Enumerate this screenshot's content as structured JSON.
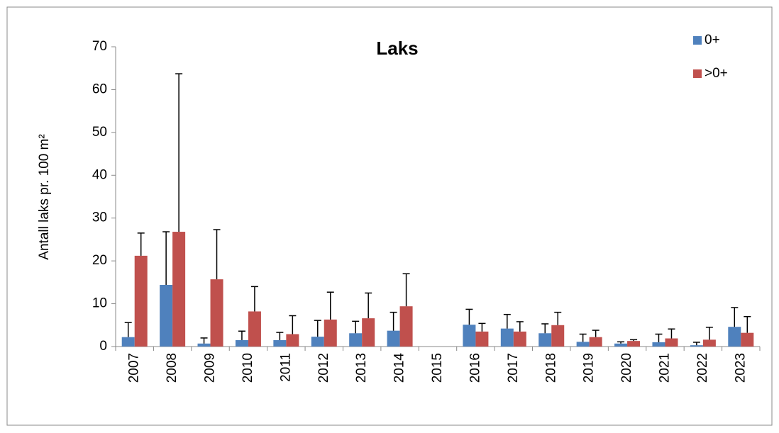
{
  "chart_data": {
    "type": "bar",
    "title": "Laks",
    "y_label": "Antall laks pr. 100 m²",
    "categories": [
      "2007",
      "2008",
      "2009",
      "2010",
      "2011",
      "2012",
      "2013",
      "2014",
      "2015",
      "2016",
      "2017",
      "2018",
      "2019",
      "2020",
      "2021",
      "2022",
      "2023"
    ],
    "series": [
      {
        "name": "0+",
        "color": "#4f81bd",
        "values": [
          2.2,
          14.4,
          0.7,
          1.5,
          1.5,
          2.3,
          3.1,
          3.7,
          null,
          5.1,
          4.2,
          3.1,
          1.1,
          0.7,
          1.0,
          0.3,
          4.6
        ],
        "errors": [
          3.4,
          12.4,
          1.3,
          2.1,
          1.8,
          3.8,
          2.8,
          4.3,
          null,
          3.6,
          3.3,
          2.2,
          1.8,
          0.4,
          1.9,
          0.7,
          4.5
        ]
      },
      {
        "name": ">0+",
        "color": "#c0504d",
        "values": [
          21.2,
          26.8,
          15.7,
          8.2,
          2.9,
          6.3,
          6.6,
          9.4,
          null,
          3.5,
          3.5,
          5.0,
          2.2,
          1.3,
          1.9,
          1.6,
          3.2
        ],
        "errors": [
          5.3,
          36.9,
          11.6,
          5.8,
          4.3,
          6.4,
          5.9,
          7.6,
          null,
          1.9,
          2.3,
          3.0,
          1.6,
          0.3,
          2.2,
          2.9,
          3.8
        ]
      }
    ],
    "ylim": [
      0,
      70
    ],
    "yticks": [
      0,
      10,
      20,
      30,
      40,
      50,
      60,
      70
    ]
  }
}
